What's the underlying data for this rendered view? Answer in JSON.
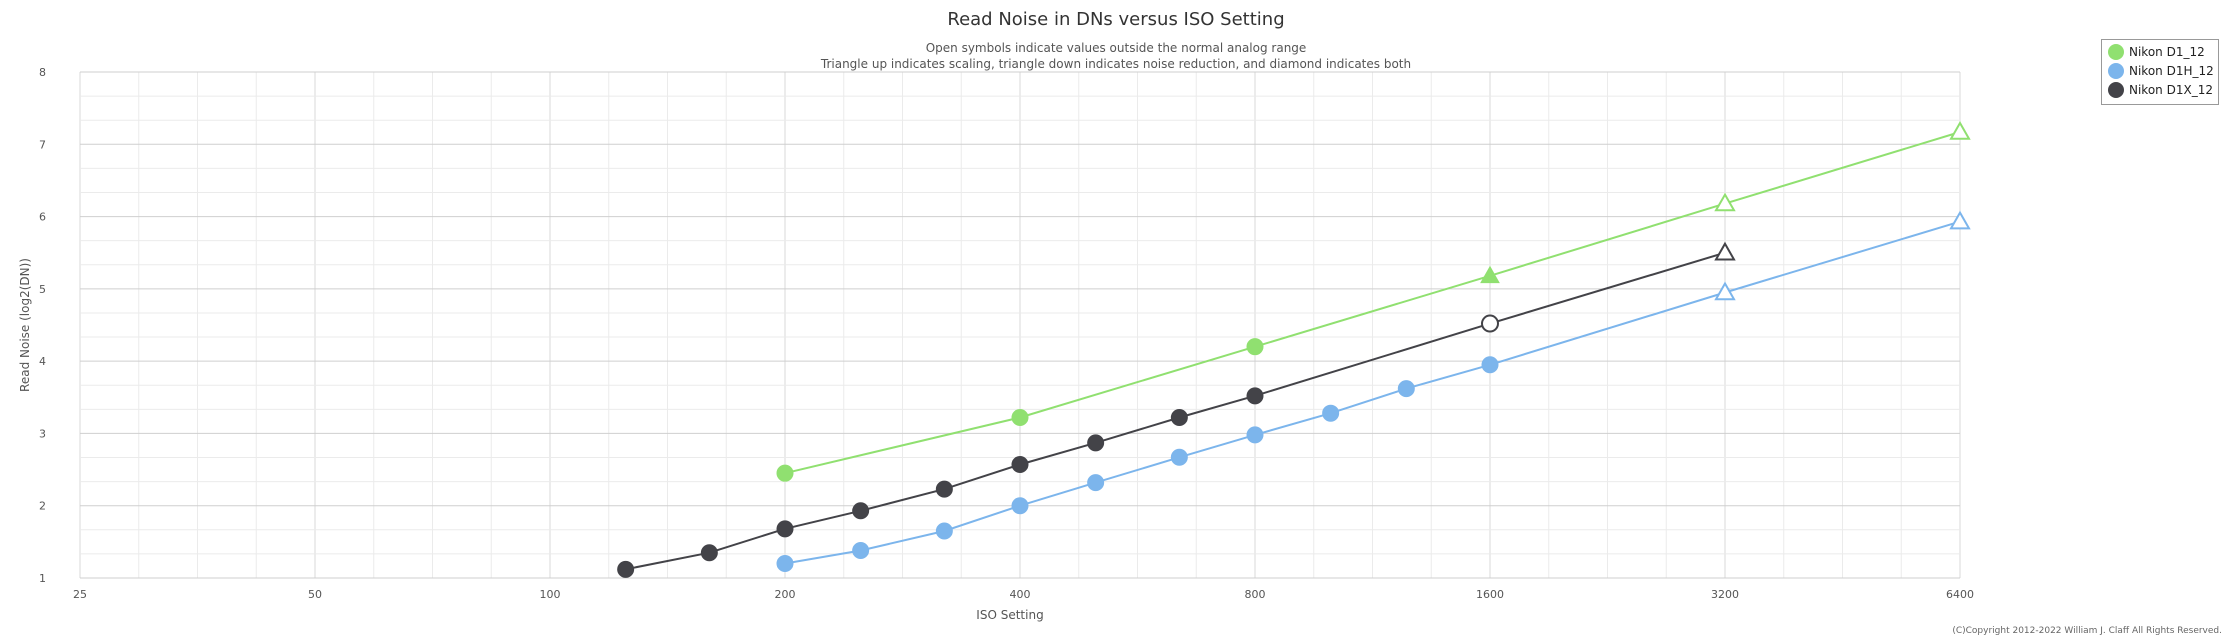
{
  "chart_data": {
    "type": "line",
    "title": "Read Noise in DNs versus ISO Setting",
    "subtitle": [
      "Open symbols indicate values outside the normal analog range",
      "Triangle up indicates scaling, triangle down indicates noise reduction, and diamond indicates both"
    ],
    "xlabel": "ISO Setting",
    "ylabel": "Read Noise (log2(DN))",
    "x_scale": "log2",
    "xlim": [
      25,
      6400
    ],
    "ylim": [
      1,
      8
    ],
    "x_ticks": [
      25,
      50,
      100,
      200,
      400,
      800,
      1600,
      3200,
      6400
    ],
    "y_ticks": [
      1,
      2,
      3,
      4,
      5,
      6,
      7,
      8
    ],
    "grid": true,
    "legend_placement": "top-right outside",
    "series": [
      {
        "name": "Nikon D1_12",
        "color": "#90e070",
        "points": [
          {
            "x": 200,
            "y": 2.45,
            "marker": "circle",
            "open": false
          },
          {
            "x": 400,
            "y": 3.22,
            "marker": "circle",
            "open": false
          },
          {
            "x": 800,
            "y": 4.2,
            "marker": "circle",
            "open": false
          },
          {
            "x": 1600,
            "y": 5.18,
            "marker": "triangle-up",
            "open": false
          },
          {
            "x": 3200,
            "y": 6.18,
            "marker": "triangle-up",
            "open": true
          },
          {
            "x": 6400,
            "y": 7.17,
            "marker": "triangle-up",
            "open": true
          }
        ]
      },
      {
        "name": "Nikon D1H_12",
        "color": "#7cb5ec",
        "points": [
          {
            "x": 200,
            "y": 1.2,
            "marker": "circle",
            "open": false
          },
          {
            "x": 250,
            "y": 1.38,
            "marker": "circle",
            "open": false
          },
          {
            "x": 320,
            "y": 1.65,
            "marker": "circle",
            "open": false
          },
          {
            "x": 400,
            "y": 2.0,
            "marker": "circle",
            "open": false
          },
          {
            "x": 500,
            "y": 2.32,
            "marker": "circle",
            "open": false
          },
          {
            "x": 640,
            "y": 2.67,
            "marker": "circle",
            "open": false
          },
          {
            "x": 800,
            "y": 2.98,
            "marker": "circle",
            "open": false
          },
          {
            "x": 1000,
            "y": 3.28,
            "marker": "circle",
            "open": false
          },
          {
            "x": 1250,
            "y": 3.62,
            "marker": "circle",
            "open": false
          },
          {
            "x": 1600,
            "y": 3.95,
            "marker": "circle",
            "open": false
          },
          {
            "x": 3200,
            "y": 4.95,
            "marker": "triangle-up",
            "open": true
          },
          {
            "x": 6400,
            "y": 5.93,
            "marker": "triangle-up",
            "open": true
          }
        ]
      },
      {
        "name": "Nikon D1X_12",
        "color": "#434348",
        "points": [
          {
            "x": 125,
            "y": 1.12,
            "marker": "circle",
            "open": false
          },
          {
            "x": 160,
            "y": 1.35,
            "marker": "circle",
            "open": false
          },
          {
            "x": 200,
            "y": 1.68,
            "marker": "circle",
            "open": false
          },
          {
            "x": 250,
            "y": 1.93,
            "marker": "circle",
            "open": false
          },
          {
            "x": 320,
            "y": 2.23,
            "marker": "circle",
            "open": false
          },
          {
            "x": 400,
            "y": 2.57,
            "marker": "circle",
            "open": false
          },
          {
            "x": 500,
            "y": 2.87,
            "marker": "circle",
            "open": false
          },
          {
            "x": 640,
            "y": 3.22,
            "marker": "circle",
            "open": false
          },
          {
            "x": 800,
            "y": 3.52,
            "marker": "circle",
            "open": false
          },
          {
            "x": 1600,
            "y": 4.52,
            "marker": "circle",
            "open": true
          },
          {
            "x": 3200,
            "y": 5.5,
            "marker": "triangle-up",
            "open": true
          }
        ]
      }
    ]
  },
  "copyright": "(C)Copyright 2012-2022 William J. Claff All Rights Reserved."
}
